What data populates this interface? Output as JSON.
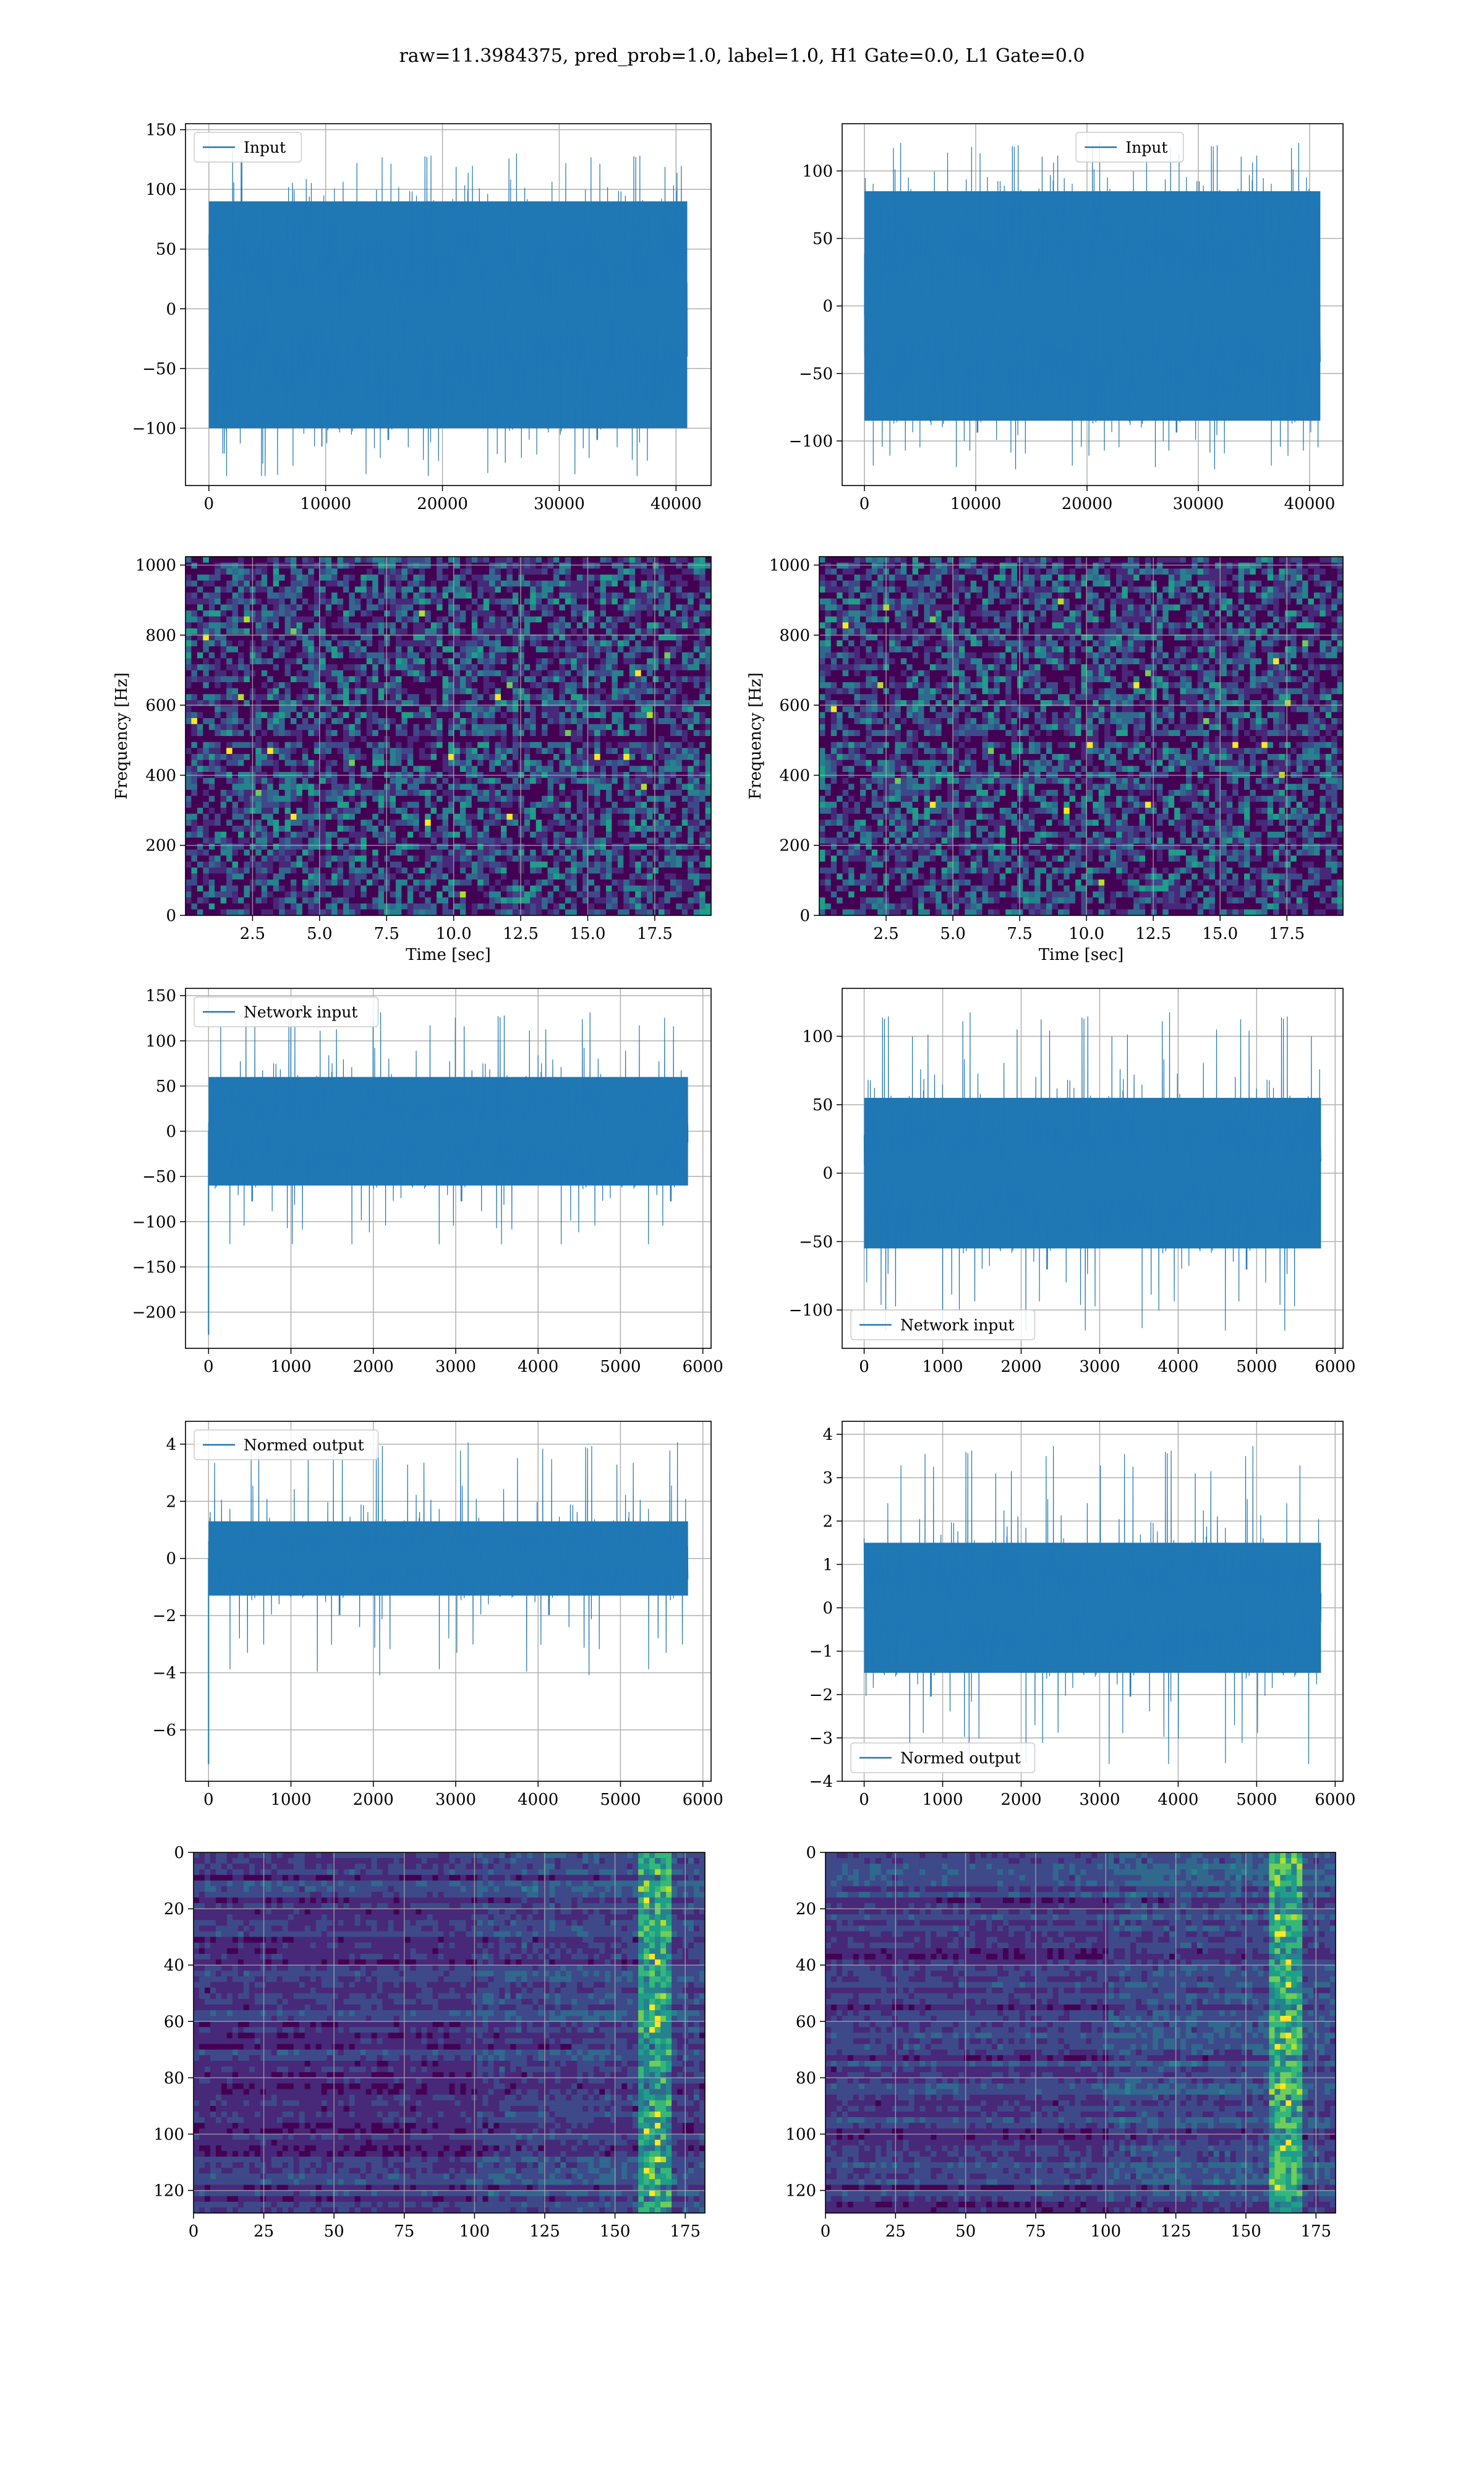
{
  "figure": {
    "title": "raw=11.3984375, pred_prob=1.0, label=1.0, H1 Gate=0.0, L1 Gate=0.0"
  },
  "colors": {
    "line": "#1f77b4",
    "grid": "#b0b0b0",
    "viridis": [
      "#440154",
      "#482878",
      "#3e4989",
      "#31688e",
      "#26828e",
      "#1f9e89",
      "#35b779",
      "#6ece58",
      "#b5de2b",
      "#fde725"
    ]
  },
  "chart_data": [
    {
      "type": "line",
      "panel": "row1-left",
      "series": [
        {
          "name": "Input",
          "x_range": [
            0,
            40960
          ],
          "envelope": [
            -100,
            90
          ],
          "peaks": [
            -140,
            140
          ]
        }
      ],
      "legend": "upper-left",
      "xlim": [
        -2000,
        43000
      ],
      "ylim": [
        -148,
        155
      ],
      "xticks": [
        0,
        10000,
        20000,
        30000,
        40000
      ],
      "yticks": [
        -100,
        -50,
        0,
        50,
        100,
        150
      ],
      "grid": true
    },
    {
      "type": "line",
      "panel": "row1-right",
      "series": [
        {
          "name": "Input",
          "x_range": [
            0,
            40960
          ],
          "envelope": [
            -85,
            85
          ],
          "peaks": [
            -125,
            125
          ]
        }
      ],
      "legend": "upper-center",
      "xlim": [
        -2000,
        43000
      ],
      "ylim": [
        -133,
        135
      ],
      "xticks": [
        0,
        10000,
        20000,
        30000,
        40000
      ],
      "yticks": [
        -100,
        -50,
        0,
        50,
        100
      ],
      "grid": true
    },
    {
      "type": "heatmap",
      "panel": "row2-left",
      "xlabel": "Time [sec]",
      "ylabel": "Frequency [Hz]",
      "xlim": [
        0,
        19.6
      ],
      "ylim": [
        0,
        1024
      ],
      "xticks": [
        2.5,
        5.0,
        7.5,
        10.0,
        12.5,
        15.0,
        17.5
      ],
      "yticks": [
        0,
        200,
        400,
        600,
        800,
        1000
      ],
      "grid": true
    },
    {
      "type": "heatmap",
      "panel": "row2-right",
      "xlabel": "Time [sec]",
      "ylabel": "Frequency [Hz]",
      "xlim": [
        0,
        19.6
      ],
      "ylim": [
        0,
        1024
      ],
      "xticks": [
        2.5,
        5.0,
        7.5,
        10.0,
        12.5,
        15.0,
        17.5
      ],
      "yticks": [
        0,
        200,
        400,
        600,
        800,
        1000
      ],
      "grid": true
    },
    {
      "type": "line",
      "panel": "row3-left",
      "series": [
        {
          "name": "Network input",
          "x_range": [
            0,
            5820
          ],
          "envelope": [
            -60,
            60
          ],
          "peaks": [
            -125,
            140
          ],
          "spike": {
            "x": 0,
            "y": -225
          }
        }
      ],
      "legend": "upper-left",
      "xlim": [
        -280,
        6100
      ],
      "ylim": [
        -240,
        158
      ],
      "xticks": [
        0,
        1000,
        2000,
        3000,
        4000,
        5000,
        6000
      ],
      "yticks": [
        -200,
        -150,
        -100,
        -50,
        0,
        50,
        100,
        150
      ],
      "grid": true
    },
    {
      "type": "line",
      "panel": "row3-right",
      "series": [
        {
          "name": "Network input",
          "x_range": [
            0,
            5820
          ],
          "envelope": [
            -55,
            55
          ],
          "peaks": [
            -115,
            125
          ]
        }
      ],
      "legend": "lower-left",
      "xlim": [
        -280,
        6100
      ],
      "ylim": [
        -128,
        135
      ],
      "xticks": [
        0,
        1000,
        2000,
        3000,
        4000,
        5000,
        6000
      ],
      "yticks": [
        -100,
        -50,
        0,
        50,
        100
      ],
      "grid": true
    },
    {
      "type": "line",
      "panel": "row4-left",
      "series": [
        {
          "name": "Normed output",
          "x_range": [
            0,
            5820
          ],
          "envelope": [
            -1.3,
            1.3
          ],
          "peaks": [
            -4.1,
            4.4
          ],
          "spike": {
            "x": 0,
            "y": -7.2
          }
        }
      ],
      "legend": "upper-left",
      "xlim": [
        -280,
        6100
      ],
      "ylim": [
        -7.8,
        4.8
      ],
      "xticks": [
        0,
        1000,
        2000,
        3000,
        4000,
        5000,
        6000
      ],
      "yticks": [
        -6,
        -4,
        -2,
        0,
        2,
        4
      ],
      "grid": true
    },
    {
      "type": "line",
      "panel": "row4-right",
      "series": [
        {
          "name": "Normed output",
          "x_range": [
            0,
            5820
          ],
          "envelope": [
            -1.5,
            1.5
          ],
          "peaks": [
            -3.6,
            4.0
          ]
        }
      ],
      "legend": "lower-left",
      "xlim": [
        -280,
        6100
      ],
      "ylim": [
        -4,
        4.3
      ],
      "xticks": [
        0,
        1000,
        2000,
        3000,
        4000,
        5000,
        6000
      ],
      "yticks": [
        -4,
        -3,
        -2,
        -1,
        0,
        1,
        2,
        3,
        4
      ],
      "grid": true
    },
    {
      "type": "heatmap",
      "panel": "row5-left",
      "xlim": [
        0,
        182
      ],
      "ylim": [
        128,
        0
      ],
      "xticks": [
        0,
        25,
        50,
        75,
        100,
        125,
        150,
        175
      ],
      "yticks": [
        0,
        20,
        40,
        60,
        80,
        100,
        120
      ],
      "grid": true
    },
    {
      "type": "heatmap",
      "panel": "row5-right",
      "xlim": [
        0,
        182
      ],
      "ylim": [
        128,
        0
      ],
      "xticks": [
        0,
        25,
        50,
        75,
        100,
        125,
        150,
        175
      ],
      "yticks": [
        0,
        20,
        40,
        60,
        80,
        100,
        120
      ],
      "grid": true
    }
  ]
}
